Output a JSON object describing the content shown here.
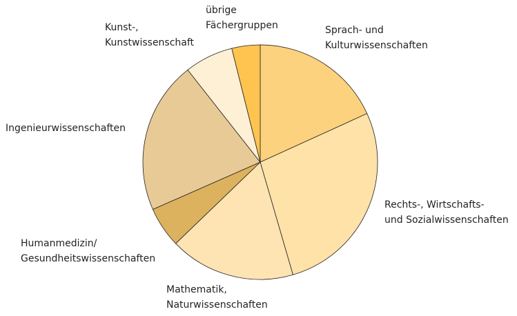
{
  "chart_data": {
    "type": "pie",
    "categories": [
      [
        "Sprach- und",
        "Kulturwissenschaften"
      ],
      [
        "Rechts-, Wirtschafts-",
        "und Sozialwissenschaften"
      ],
      [
        "Mathematik,",
        "Naturwissenschaften"
      ],
      [
        "Humanmedizin/",
        "Gesundheitswissenschaften"
      ],
      [
        "Ingenieurwissenschaften"
      ],
      [
        "Kunst-,",
        "Kunstwissenschaft"
      ],
      [
        "übrige",
        "Fächergruppen"
      ]
    ],
    "values": [
      18.2,
      27.3,
      17.3,
      5.6,
      21.0,
      6.7,
      3.9
    ],
    "colors": [
      "#fdd27e",
      "#fee2a8",
      "#fee3b3",
      "#dcb25e",
      "#e8ca96",
      "#fef0d4",
      "#fec44f"
    ]
  }
}
